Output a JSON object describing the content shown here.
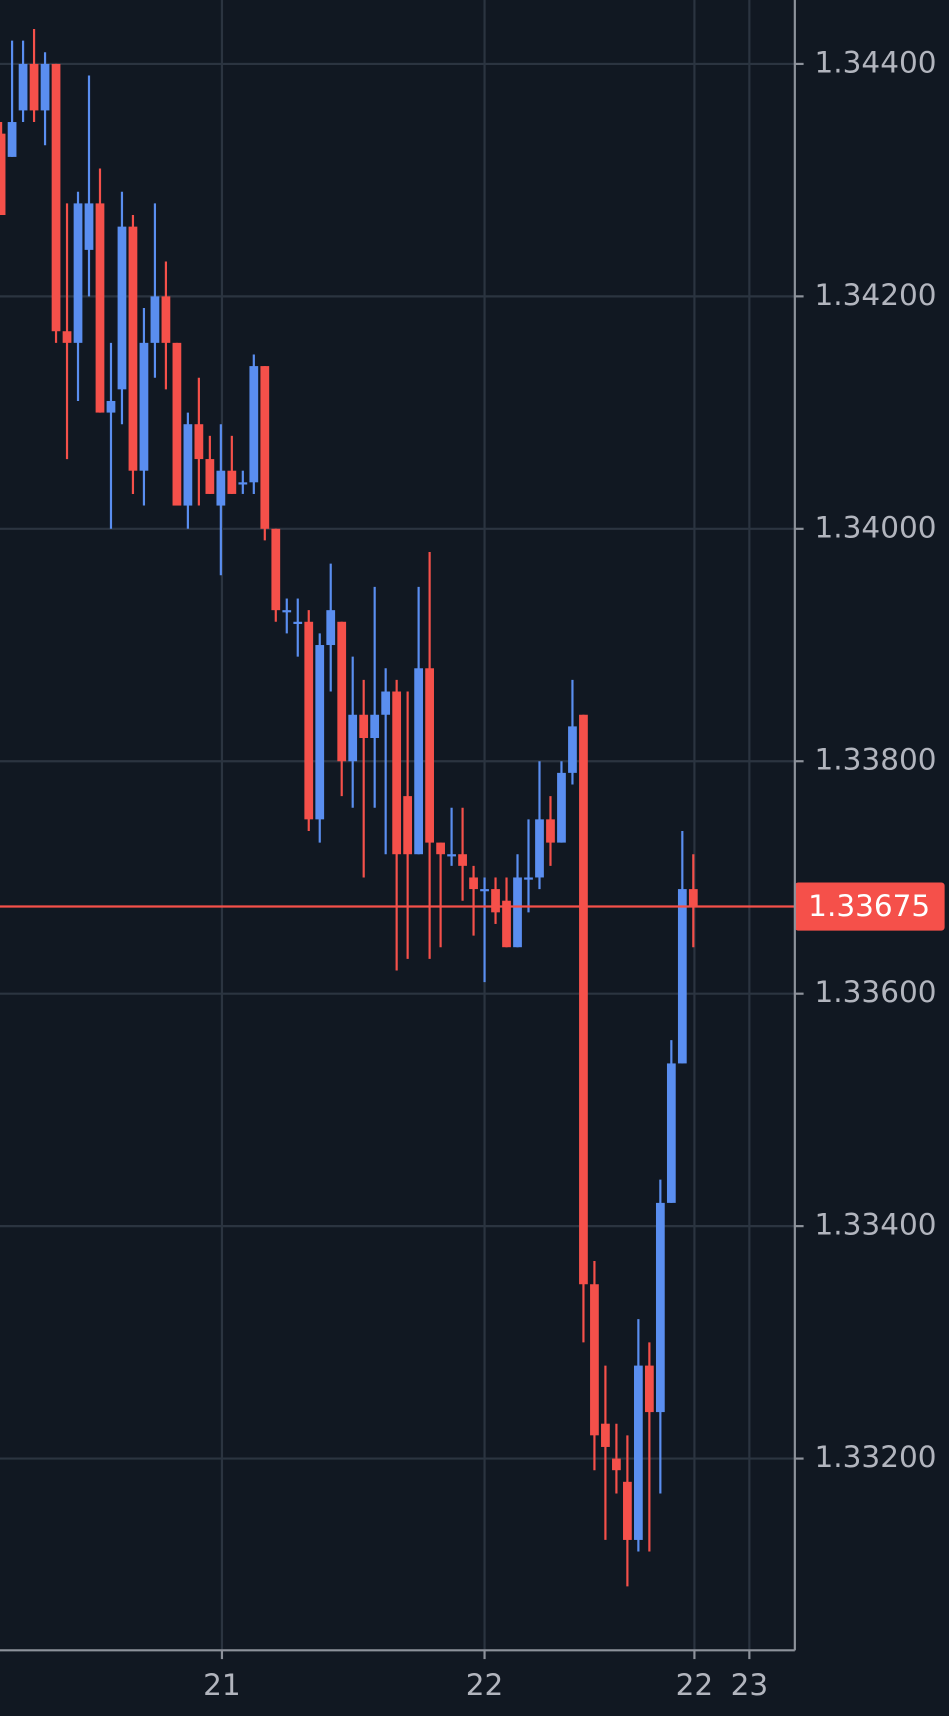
{
  "chart_data": {
    "type": "candlestick",
    "x": [
      0,
      1,
      2,
      3,
      4,
      5,
      6,
      7,
      8,
      9,
      10,
      11,
      12,
      13,
      14,
      15,
      16,
      17,
      18,
      19,
      20,
      21,
      22,
      23,
      24,
      25,
      26,
      27,
      28,
      29,
      30,
      31,
      32,
      33,
      34,
      35,
      36,
      37,
      38,
      39,
      40,
      41,
      42,
      43,
      44,
      45,
      46,
      47,
      48,
      49,
      50,
      51,
      52,
      53,
      54,
      55,
      56,
      57,
      58,
      59,
      60,
      61,
      62,
      63
    ],
    "open": [
      1.3434,
      1.3432,
      1.3436,
      1.344,
      1.3436,
      1.344,
      1.3417,
      1.3416,
      1.3424,
      1.3428,
      1.341,
      1.3412,
      1.3426,
      1.3405,
      1.3416,
      1.342,
      1.3416,
      1.3402,
      1.3409,
      1.3406,
      1.3402,
      1.3405,
      1.3404,
      1.3404,
      1.3414,
      1.34,
      1.3393,
      1.3392,
      1.3392,
      1.3375,
      1.339,
      1.3392,
      1.338,
      1.3384,
      1.3382,
      1.3384,
      1.3386,
      1.3377,
      1.3372,
      1.3388,
      1.3373,
      1.3372,
      1.3372,
      1.337,
      1.3369,
      1.3369,
      1.3368,
      1.3364,
      1.337,
      1.337,
      1.3375,
      1.3373,
      1.3379,
      1.3384,
      1.3335,
      1.3323,
      1.332,
      1.3318,
      1.3313,
      1.3328,
      1.3324,
      1.3342,
      1.3354,
      1.3369
    ],
    "high": [
      1.3435,
      1.3442,
      1.3442,
      1.3443,
      1.3441,
      1.344,
      1.3428,
      1.3429,
      1.3439,
      1.3431,
      1.3416,
      1.3429,
      1.3427,
      1.3419,
      1.3428,
      1.3423,
      1.3416,
      1.341,
      1.3413,
      1.3408,
      1.3409,
      1.3408,
      1.3405,
      1.3415,
      1.3414,
      1.34,
      1.3394,
      1.3394,
      1.3393,
      1.3391,
      1.3397,
      1.3392,
      1.3389,
      1.3387,
      1.3395,
      1.3388,
      1.3387,
      1.3386,
      1.3395,
      1.3398,
      1.3373,
      1.3376,
      1.3376,
      1.3371,
      1.337,
      1.337,
      1.337,
      1.3372,
      1.3375,
      1.338,
      1.3377,
      1.338,
      1.3387,
      1.3384,
      1.3337,
      1.3328,
      1.3323,
      1.3322,
      1.3332,
      1.333,
      1.3344,
      1.3356,
      1.3374,
      1.3372
    ],
    "low": [
      1.3427,
      1.3432,
      1.3435,
      1.3435,
      1.3433,
      1.3416,
      1.3406,
      1.3411,
      1.342,
      1.341,
      1.34,
      1.3409,
      1.3403,
      1.3402,
      1.3413,
      1.3412,
      1.3402,
      1.34,
      1.3402,
      1.3403,
      1.3396,
      1.3403,
      1.3403,
      1.3403,
      1.3399,
      1.3392,
      1.3391,
      1.3389,
      1.3374,
      1.3373,
      1.3386,
      1.3377,
      1.3376,
      1.337,
      1.3376,
      1.3372,
      1.3362,
      1.3363,
      1.3372,
      1.3363,
      1.3364,
      1.3371,
      1.3368,
      1.3365,
      1.3361,
      1.3366,
      1.3364,
      1.3364,
      1.3367,
      1.3369,
      1.3371,
      1.3373,
      1.3378,
      1.333,
      1.3319,
      1.3313,
      1.3317,
      1.3309,
      1.3312,
      1.3312,
      1.3317,
      1.3342,
      1.3354,
      1.3364
    ],
    "close": [
      1.3427,
      1.3435,
      1.344,
      1.3436,
      1.344,
      1.3417,
      1.3416,
      1.3428,
      1.3428,
      1.341,
      1.3411,
      1.3426,
      1.3405,
      1.3416,
      1.342,
      1.3416,
      1.3402,
      1.3409,
      1.3406,
      1.3403,
      1.3405,
      1.3403,
      1.3404,
      1.3414,
      1.34,
      1.3393,
      1.3393,
      1.3392,
      1.3375,
      1.339,
      1.3393,
      1.338,
      1.3384,
      1.3382,
      1.3384,
      1.3386,
      1.3372,
      1.3372,
      1.3388,
      1.3373,
      1.3372,
      1.3372,
      1.3371,
      1.3369,
      1.3369,
      1.3367,
      1.3364,
      1.337,
      1.337,
      1.3375,
      1.3373,
      1.3379,
      1.3383,
      1.3335,
      1.3322,
      1.3321,
      1.3319,
      1.3313,
      1.3328,
      1.3324,
      1.3342,
      1.3354,
      1.3369,
      1.33675
    ],
    "up_color": "#5a8ef0",
    "down_color": "#f5504a",
    "xlim": [
      -0.1,
      72.24
    ],
    "xticks": [
      {
        "value": 20.1,
        "label": "21"
      },
      {
        "value": 44,
        "label": "22"
      },
      {
        "value": 63.1,
        "label": "22"
      },
      {
        "value": 68.1,
        "label": "23"
      }
    ],
    "ylim": [
      1.33035,
      1.34455
    ],
    "yticks": [
      {
        "value": 1.332,
        "label": "1.33200"
      },
      {
        "value": 1.334,
        "label": "1.33400"
      },
      {
        "value": 1.336,
        "label": "1.33600"
      },
      {
        "value": 1.338,
        "label": "1.33800"
      },
      {
        "value": 1.34,
        "label": "1.34000"
      },
      {
        "value": 1.342,
        "label": "1.34200"
      },
      {
        "value": 1.344,
        "label": "1.34400"
      }
    ],
    "grid": true,
    "grid_color": "#2b3440",
    "last_price": {
      "value": 1.33675,
      "label": "1.33675"
    },
    "last_price_color": "#f5504a"
  }
}
